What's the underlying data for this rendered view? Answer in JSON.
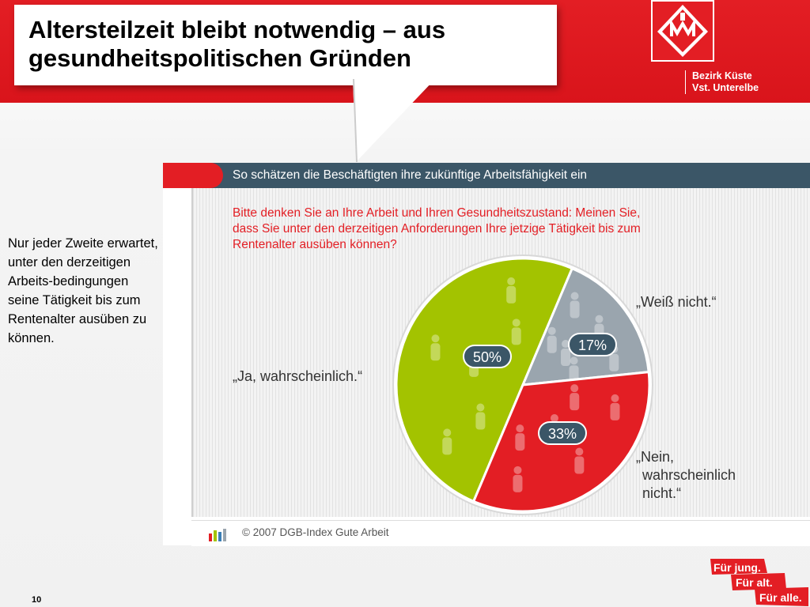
{
  "slide": {
    "title": "Altersteilzeit bleibt notwendig – aus gesundheitspolitischen Gründen",
    "region_line1": "Bezirk Küste",
    "region_line2": "Vst. Unterelbe",
    "side_text": "Nur jeder Zweite erwartet, unter den derzeitigen Arbeits-bedingungen seine Tätigkeit bis zum Rentenalter ausüben zu können.",
    "page_number": "10",
    "slogan": [
      "Für jung.",
      "Für alt.",
      "Für alle."
    ],
    "logo_icon": "ig-metall-logo-icon",
    "colors": {
      "brand_red": "#e31e24",
      "header_blue": "#3b5667"
    }
  },
  "chart_data": {
    "type": "pie",
    "header": "So schätzen die Beschäftigten ihre zukünftige Arbeitsfähigkeit ein",
    "question": "Bitte denken Sie an Ihre Arbeit und Ihren Gesundheitszustand: Meinen Sie, dass Sie unter den derzeitigen Anforderungen Ihre jetzige Tätigkeit bis zum Rentenalter ausüben können?",
    "unit": "%",
    "slices": [
      {
        "label": "„Ja, wahrscheinlich.“",
        "value": 50,
        "value_label": "50%",
        "color": "#a3c300"
      },
      {
        "label": "„Weiß nicht.“",
        "value": 17,
        "value_label": "17%",
        "color": "#9aa5ae"
      },
      {
        "label": "„Nein, wahrscheinlich nicht.“",
        "value": 33,
        "value_label": "33%",
        "color": "#e31e24"
      }
    ],
    "source": "© 2007 DGB-Index Gute Arbeit"
  }
}
